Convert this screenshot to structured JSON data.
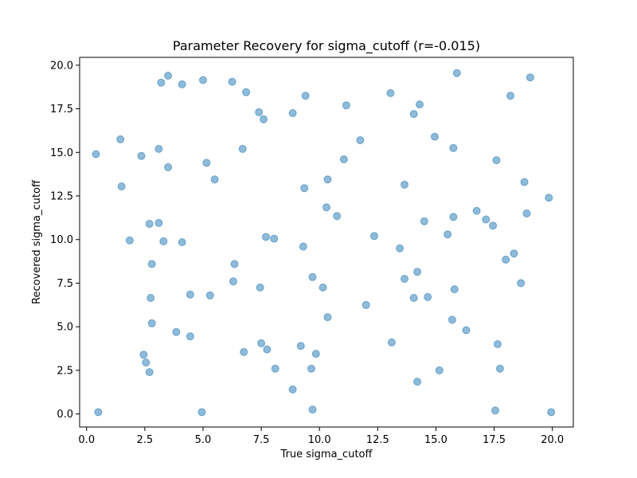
{
  "chart_data": {
    "type": "scatter",
    "title": "Parameter Recovery for sigma_cutoff (r=-0.015)",
    "xlabel": "True sigma_cutoff",
    "ylabel": "Recovered sigma_cutoff",
    "xlim": [
      -0.3,
      20.9
    ],
    "ylim": [
      -0.75,
      20.45
    ],
    "xticks": [
      0,
      2.5,
      5,
      7.5,
      10,
      12.5,
      15,
      17.5,
      20
    ],
    "xtick_labels": [
      "0.0",
      "2.5",
      "5.0",
      "7.5",
      "10.0",
      "12.5",
      "15.0",
      "17.5",
      "20.0"
    ],
    "yticks": [
      0,
      2.5,
      5,
      7.5,
      10,
      12.5,
      15,
      17.5,
      20
    ],
    "ytick_labels": [
      "0.0",
      "2.5",
      "5.0",
      "7.5",
      "10.0",
      "12.5",
      "15.0",
      "17.5",
      "20.0"
    ],
    "grid": false,
    "marker_color": "#1f77b4",
    "marker_alpha": 0.5,
    "points": [
      [
        0.4,
        14.9
      ],
      [
        0.5,
        0.1
      ],
      [
        1.45,
        15.75
      ],
      [
        1.5,
        13.05
      ],
      [
        1.85,
        9.95
      ],
      [
        2.35,
        14.8
      ],
      [
        2.45,
        3.4
      ],
      [
        2.55,
        2.95
      ],
      [
        2.7,
        2.4
      ],
      [
        2.7,
        10.9
      ],
      [
        2.75,
        6.65
      ],
      [
        2.8,
        5.2
      ],
      [
        2.8,
        8.6
      ],
      [
        3.1,
        15.2
      ],
      [
        3.1,
        10.95
      ],
      [
        3.2,
        19.0
      ],
      [
        3.3,
        9.9
      ],
      [
        3.5,
        19.4
      ],
      [
        3.5,
        14.15
      ],
      [
        3.85,
        4.7
      ],
      [
        4.1,
        18.9
      ],
      [
        4.1,
        9.85
      ],
      [
        4.45,
        6.85
      ],
      [
        4.45,
        4.45
      ],
      [
        4.95,
        0.1
      ],
      [
        5.0,
        19.15
      ],
      [
        5.15,
        14.4
      ],
      [
        5.3,
        6.8
      ],
      [
        5.5,
        13.45
      ],
      [
        6.25,
        19.05
      ],
      [
        6.3,
        7.6
      ],
      [
        6.35,
        8.6
      ],
      [
        6.7,
        15.2
      ],
      [
        6.75,
        3.55
      ],
      [
        6.85,
        18.45
      ],
      [
        7.4,
        17.3
      ],
      [
        7.45,
        7.25
      ],
      [
        7.5,
        4.05
      ],
      [
        7.6,
        16.9
      ],
      [
        7.7,
        10.15
      ],
      [
        7.75,
        3.7
      ],
      [
        8.05,
        10.05
      ],
      [
        8.1,
        2.6
      ],
      [
        8.85,
        17.25
      ],
      [
        8.85,
        1.4
      ],
      [
        9.2,
        3.9
      ],
      [
        9.3,
        9.6
      ],
      [
        9.35,
        12.95
      ],
      [
        9.4,
        18.25
      ],
      [
        9.65,
        2.6
      ],
      [
        9.7,
        0.25
      ],
      [
        9.7,
        7.85
      ],
      [
        9.85,
        3.45
      ],
      [
        10.15,
        7.25
      ],
      [
        10.3,
        11.85
      ],
      [
        10.35,
        5.55
      ],
      [
        10.35,
        13.45
      ],
      [
        10.75,
        11.35
      ],
      [
        11.05,
        14.6
      ],
      [
        11.15,
        17.7
      ],
      [
        11.75,
        15.7
      ],
      [
        12.0,
        6.25
      ],
      [
        12.35,
        10.2
      ],
      [
        13.05,
        18.4
      ],
      [
        13.1,
        4.1
      ],
      [
        13.45,
        9.5
      ],
      [
        13.65,
        7.75
      ],
      [
        13.65,
        13.15
      ],
      [
        14.05,
        17.2
      ],
      [
        14.05,
        6.65
      ],
      [
        14.2,
        8.15
      ],
      [
        14.2,
        1.85
      ],
      [
        14.3,
        17.75
      ],
      [
        14.5,
        11.05
      ],
      [
        14.65,
        6.7
      ],
      [
        14.95,
        15.9
      ],
      [
        15.15,
        2.5
      ],
      [
        15.5,
        10.3
      ],
      [
        15.7,
        5.4
      ],
      [
        15.75,
        15.25
      ],
      [
        15.75,
        11.3
      ],
      [
        15.8,
        7.15
      ],
      [
        15.9,
        19.55
      ],
      [
        16.3,
        4.8
      ],
      [
        16.75,
        11.65
      ],
      [
        17.15,
        11.15
      ],
      [
        17.45,
        10.8
      ],
      [
        17.55,
        0.2
      ],
      [
        17.6,
        14.55
      ],
      [
        17.65,
        4.0
      ],
      [
        17.75,
        2.6
      ],
      [
        18.0,
        8.85
      ],
      [
        18.2,
        18.25
      ],
      [
        18.35,
        9.2
      ],
      [
        18.65,
        7.5
      ],
      [
        18.8,
        13.3
      ],
      [
        18.9,
        11.5
      ],
      [
        19.05,
        19.3
      ],
      [
        19.85,
        12.4
      ],
      [
        19.95,
        0.1
      ]
    ]
  }
}
